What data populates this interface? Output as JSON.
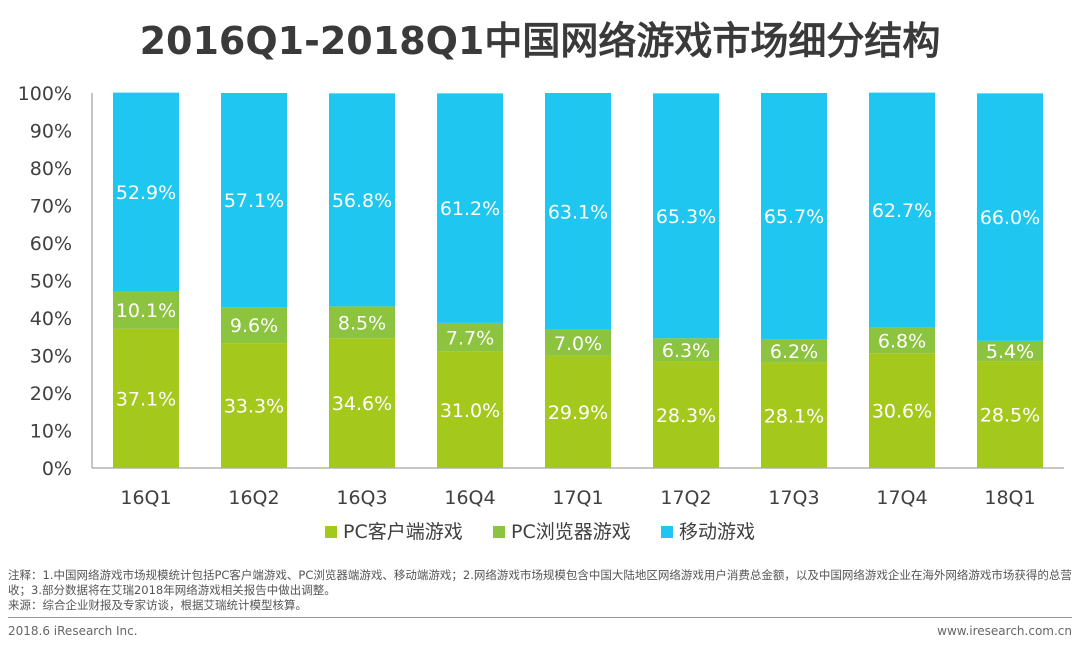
{
  "title": "2016Q1-2018Q1中国网络游戏市场细分结构",
  "chart_data": {
    "type": "bar",
    "stacked": true,
    "percent": true,
    "categories": [
      "16Q1",
      "16Q2",
      "16Q3",
      "16Q4",
      "17Q1",
      "17Q2",
      "17Q3",
      "17Q4",
      "18Q1"
    ],
    "series": [
      {
        "name": "PC客户端游戏",
        "color": "#a5c81c",
        "values": [
          37.1,
          33.3,
          34.6,
          31.0,
          29.9,
          28.3,
          28.1,
          30.6,
          28.5
        ],
        "labels": [
          "37.1%",
          "33.3%",
          "34.6%",
          "31.0%",
          "29.9%",
          "28.3%",
          "28.1%",
          "30.6%",
          "28.5%"
        ]
      },
      {
        "name": "PC浏览器游戏",
        "color": "#8cc33f",
        "values": [
          10.1,
          9.6,
          8.5,
          7.7,
          7.0,
          6.3,
          6.2,
          6.8,
          5.4
        ],
        "labels": [
          "10.1%",
          "9.6%",
          "8.5%",
          "7.7%",
          "7.0%",
          "6.3%",
          "6.2%",
          "6.8%",
          "5.4%"
        ]
      },
      {
        "name": "移动游戏",
        "color": "#1ec6f0",
        "values": [
          52.9,
          57.1,
          56.8,
          61.2,
          63.1,
          65.3,
          65.7,
          62.7,
          66.0
        ],
        "labels": [
          "52.9%",
          "57.1%",
          "56.8%",
          "61.2%",
          "63.1%",
          "65.3%",
          "65.7%",
          "62.7%",
          "66.0%"
        ]
      }
    ],
    "yticks": [
      "0%",
      "10%",
      "20%",
      "30%",
      "40%",
      "50%",
      "60%",
      "70%",
      "80%",
      "90%",
      "100%"
    ],
    "ylim": [
      0,
      100
    ],
    "legend_position": "bottom",
    "grid": false
  },
  "notes": {
    "line1": "注释：1.中国网络游戏市场规模统计包括PC客户端游戏、PC浏览器端游戏、移动端游戏；2.网络游戏市场规模包含中国大陆地区网络游戏用户消费总金额，以及中国网络游戏企业在海外网络游戏市场获得的总营收；3.部分数据将在艾瑞2018年网络游戏相关报告中做出调整。",
    "line2": "来源：综合企业财报及专家访谈，根据艾瑞统计模型核算。"
  },
  "footer": {
    "left": "2018.6 iResearch Inc.",
    "right": "www.iresearch.com.cn"
  }
}
